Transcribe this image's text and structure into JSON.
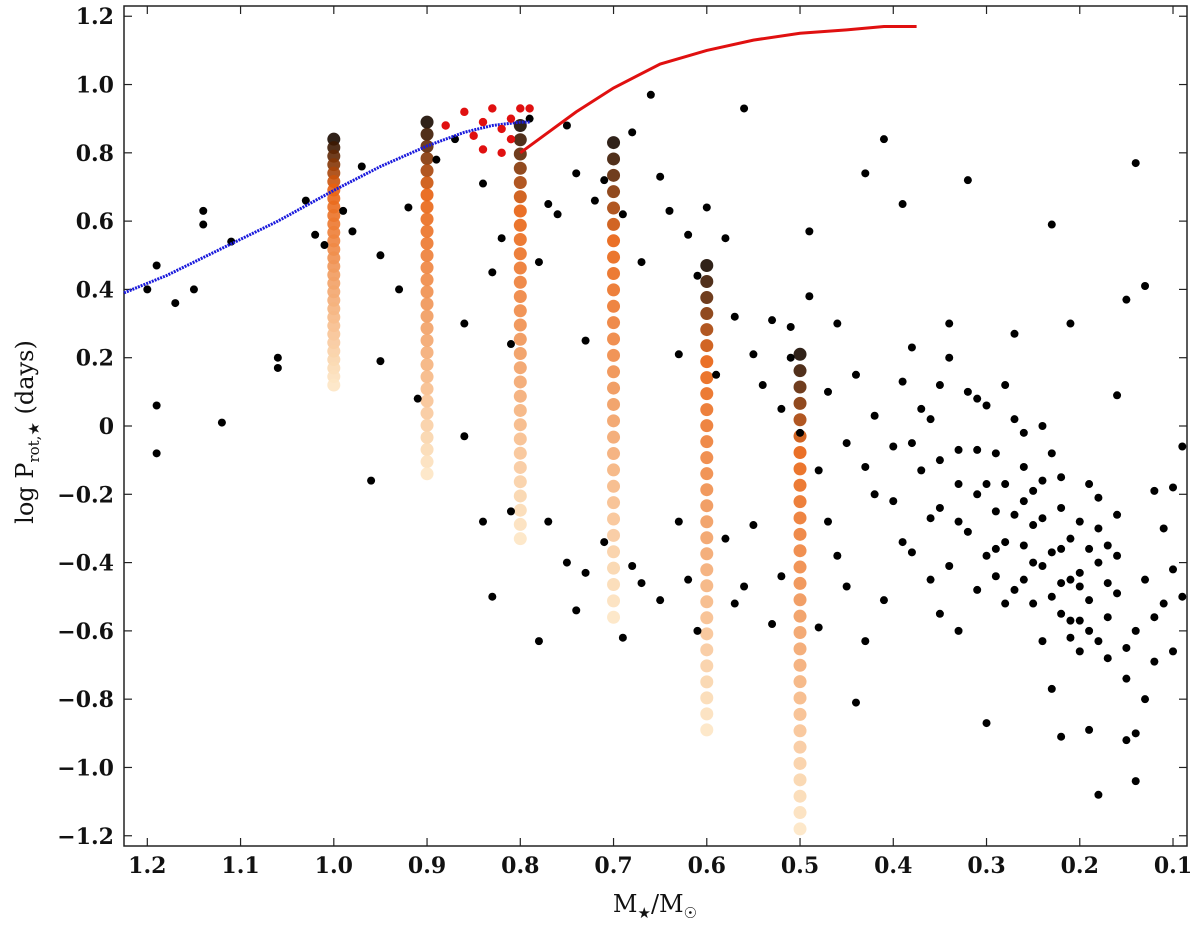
{
  "chart_data": {
    "type": "scatter",
    "title": "",
    "xlabel": "M★/M☉",
    "ylabel": "log P_rot,★ (days)",
    "xlabel_parts": {
      "main": "M",
      "sub1": "★",
      "sep": "/M",
      "sub2": "☉"
    },
    "ylabel_parts": {
      "pre": "log P",
      "sub": "rot,★",
      "post": " (days)"
    },
    "xlim": [
      1.225,
      0.085
    ],
    "ylim": [
      -1.23,
      1.23
    ],
    "x_reversed": true,
    "grid": false,
    "legend": "none",
    "x_ticks": [
      1.2,
      1.1,
      1.0,
      0.9,
      0.8,
      0.7,
      0.6,
      0.5,
      0.4,
      0.3,
      0.2,
      0.1
    ],
    "x_tick_labels": [
      "1.2",
      "1.1",
      "1.0",
      "0.9",
      "0.8",
      "0.7",
      "0.6",
      "0.5",
      "0.4",
      "0.3",
      "0.2",
      "0.1"
    ],
    "y_ticks": [
      1.2,
      1.0,
      0.8,
      0.6,
      0.4,
      0.2,
      0.0,
      -0.2,
      -0.4,
      -0.6,
      -0.8,
      -1.0,
      -1.2
    ],
    "y_tick_labels": [
      "1.2",
      "1.0",
      "0.8",
      "0.6",
      "0.4",
      "0.2",
      "0",
      "−0.2",
      "−0.4",
      "−0.6",
      "−0.8",
      "−1.0",
      "−1.2"
    ],
    "colors": {
      "observed": "#000000",
      "blue_curve": "#1a1adc",
      "red_curve": "#e01010",
      "red_points": "#e01010",
      "track_dark": "#1a0a00",
      "track_mid": "#e8600e",
      "track_light": "#fde6c4"
    },
    "series": [
      {
        "kind": "observed-scatter",
        "color": "#000000",
        "points": [
          [
            1.2,
            0.4
          ],
          [
            1.19,
            0.47
          ],
          [
            1.17,
            0.36
          ],
          [
            1.15,
            0.4
          ],
          [
            1.14,
            0.63
          ],
          [
            1.14,
            0.59
          ],
          [
            1.11,
            0.54
          ],
          [
            1.06,
            0.2
          ],
          [
            1.06,
            0.17
          ],
          [
            1.03,
            0.66
          ],
          [
            1.02,
            0.56
          ],
          [
            1.01,
            0.53
          ],
          [
            0.99,
            0.63
          ],
          [
            0.98,
            0.57
          ],
          [
            0.97,
            0.76
          ],
          [
            0.95,
            0.5
          ],
          [
            0.95,
            0.19
          ],
          [
            0.93,
            0.4
          ],
          [
            0.92,
            0.64
          ],
          [
            0.91,
            0.08
          ],
          [
            0.89,
            0.78
          ],
          [
            0.87,
            0.84
          ],
          [
            0.86,
            0.3
          ],
          [
            0.84,
            0.71
          ],
          [
            0.83,
            0.45
          ],
          [
            0.82,
            0.55
          ],
          [
            0.81,
            0.24
          ],
          [
            0.79,
            0.9
          ],
          [
            0.78,
            0.48
          ],
          [
            0.77,
            0.65
          ],
          [
            0.76,
            0.62
          ],
          [
            0.75,
            0.88
          ],
          [
            0.74,
            0.74
          ],
          [
            0.73,
            0.25
          ],
          [
            0.72,
            0.66
          ],
          [
            0.71,
            0.72
          ],
          [
            0.69,
            0.62
          ],
          [
            0.68,
            0.86
          ],
          [
            0.67,
            0.48
          ],
          [
            0.66,
            0.97
          ],
          [
            0.65,
            0.73
          ],
          [
            0.64,
            0.63
          ],
          [
            0.63,
            0.21
          ],
          [
            0.62,
            0.56
          ],
          [
            0.61,
            0.44
          ],
          [
            0.6,
            0.64
          ],
          [
            0.59,
            0.15
          ],
          [
            0.58,
            0.55
          ],
          [
            0.57,
            0.32
          ],
          [
            0.56,
            0.93
          ],
          [
            0.55,
            0.21
          ],
          [
            0.54,
            0.12
          ],
          [
            0.53,
            0.31
          ],
          [
            0.52,
            0.05
          ],
          [
            0.51,
            0.29
          ],
          [
            0.49,
            0.57
          ],
          [
            1.19,
            0.06
          ],
          [
            1.19,
            -0.08
          ],
          [
            1.12,
            0.01
          ],
          [
            0.96,
            -0.16
          ],
          [
            0.86,
            -0.03
          ],
          [
            0.84,
            -0.28
          ],
          [
            0.83,
            -0.5
          ],
          [
            0.81,
            -0.25
          ],
          [
            0.78,
            -0.63
          ],
          [
            0.77,
            -0.28
          ],
          [
            0.75,
            -0.4
          ],
          [
            0.74,
            -0.54
          ],
          [
            0.73,
            -0.43
          ],
          [
            0.71,
            -0.34
          ],
          [
            0.69,
            -0.62
          ],
          [
            0.68,
            -0.41
          ],
          [
            0.67,
            -0.46
          ],
          [
            0.65,
            -0.51
          ],
          [
            0.63,
            -0.28
          ],
          [
            0.62,
            -0.45
          ],
          [
            0.61,
            -0.6
          ],
          [
            0.58,
            -0.33
          ],
          [
            0.57,
            -0.52
          ],
          [
            0.56,
            -0.47
          ],
          [
            0.55,
            -0.29
          ],
          [
            0.53,
            -0.58
          ],
          [
            0.52,
            -0.44
          ],
          [
            0.48,
            -0.59
          ],
          [
            0.47,
            -0.28
          ],
          [
            0.46,
            -0.38
          ],
          [
            0.45,
            -0.47
          ],
          [
            0.44,
            -0.81
          ],
          [
            0.43,
            -0.63
          ],
          [
            0.42,
            -0.2
          ],
          [
            0.41,
            -0.51
          ],
          [
            0.4,
            -0.06
          ],
          [
            0.39,
            0.13
          ],
          [
            0.38,
            0.23
          ],
          [
            0.38,
            -0.37
          ],
          [
            0.37,
            -0.13
          ],
          [
            0.36,
            0.02
          ],
          [
            0.35,
            -0.24
          ],
          [
            0.34,
            0.3
          ],
          [
            0.33,
            -0.07
          ],
          [
            0.32,
            -0.31
          ],
          [
            0.31,
            0.08
          ],
          [
            0.3,
            -0.17
          ],
          [
            0.29,
            -0.44
          ],
          [
            0.28,
            0.12
          ],
          [
            0.27,
            -0.26
          ],
          [
            0.26,
            -0.12
          ],
          [
            0.25,
            -0.52
          ],
          [
            0.24,
            0.0
          ],
          [
            0.23,
            -0.37
          ],
          [
            0.22,
            -0.24
          ],
          [
            0.21,
            -0.57
          ],
          [
            0.2,
            -0.43
          ],
          [
            0.19,
            -0.17
          ],
          [
            0.18,
            -0.63
          ],
          [
            0.17,
            -0.35
          ],
          [
            0.16,
            -0.49
          ],
          [
            0.15,
            -0.74
          ],
          [
            0.14,
            -0.6
          ],
          [
            0.13,
            -0.45
          ],
          [
            0.12,
            -0.69
          ],
          [
            0.11,
            -0.52
          ],
          [
            0.1,
            -0.66
          ],
          [
            0.09,
            -0.5
          ],
          [
            0.18,
            -1.08
          ],
          [
            0.14,
            -1.04
          ],
          [
            0.14,
            -0.9
          ],
          [
            0.15,
            -0.92
          ],
          [
            0.19,
            -0.89
          ],
          [
            0.22,
            -0.91
          ],
          [
            0.23,
            -0.77
          ],
          [
            0.3,
            -0.87
          ],
          [
            0.14,
            0.77
          ],
          [
            0.13,
            0.41
          ],
          [
            0.15,
            0.37
          ],
          [
            0.32,
            0.72
          ],
          [
            0.41,
            0.84
          ],
          [
            0.43,
            0.74
          ],
          [
            0.39,
            0.65
          ],
          [
            0.23,
            0.59
          ],
          [
            0.21,
            0.3
          ],
          [
            0.34,
            0.2
          ],
          [
            0.27,
            0.27
          ],
          [
            0.16,
            0.09
          ],
          [
            0.31,
            -0.07
          ],
          [
            0.28,
            -0.17
          ],
          [
            0.26,
            -0.02
          ],
          [
            0.25,
            -0.29
          ],
          [
            0.24,
            -0.41
          ],
          [
            0.22,
            -0.46
          ],
          [
            0.21,
            -0.33
          ],
          [
            0.2,
            -0.28
          ],
          [
            0.19,
            -0.51
          ],
          [
            0.18,
            -0.4
          ],
          [
            0.17,
            -0.56
          ],
          [
            0.16,
            -0.26
          ],
          [
            0.36,
            -0.45
          ],
          [
            0.35,
            -0.55
          ],
          [
            0.33,
            -0.6
          ],
          [
            0.3,
            -0.38
          ],
          [
            0.29,
            -0.08
          ],
          [
            0.27,
            -0.48
          ],
          [
            0.26,
            -0.35
          ],
          [
            0.25,
            -0.19
          ],
          [
            0.24,
            -0.63
          ],
          [
            0.23,
            -0.08
          ],
          [
            0.22,
            -0.55
          ],
          [
            0.2,
            -0.66
          ],
          [
            0.19,
            -0.36
          ],
          [
            0.18,
            -0.21
          ],
          [
            0.17,
            -0.46
          ],
          [
            0.4,
            -0.22
          ],
          [
            0.39,
            -0.34
          ],
          [
            0.37,
            0.05
          ],
          [
            0.36,
            -0.27
          ],
          [
            0.35,
            0.12
          ],
          [
            0.33,
            -0.17
          ],
          [
            0.32,
            0.1
          ],
          [
            0.31,
            -0.2
          ],
          [
            0.3,
            0.06
          ],
          [
            0.29,
            -0.25
          ],
          [
            0.28,
            -0.34
          ],
          [
            0.27,
            0.02
          ],
          [
            0.26,
            -0.22
          ],
          [
            0.25,
            -0.4
          ],
          [
            0.24,
            -0.16
          ],
          [
            0.23,
            -0.5
          ],
          [
            0.22,
            -0.15
          ],
          [
            0.21,
            -0.45
          ],
          [
            0.2,
            -0.57
          ],
          [
            0.19,
            -0.6
          ],
          [
            0.18,
            -0.3
          ],
          [
            0.17,
            -0.68
          ],
          [
            0.16,
            -0.38
          ],
          [
            0.42,
            0.03
          ],
          [
            0.43,
            -0.12
          ],
          [
            0.44,
            0.15
          ],
          [
            0.45,
            -0.05
          ],
          [
            0.46,
            0.3
          ],
          [
            0.47,
            0.1
          ],
          [
            0.48,
            -0.13
          ],
          [
            0.49,
            0.38
          ],
          [
            0.5,
            -0.02
          ],
          [
            0.51,
            0.2
          ],
          [
            0.12,
            -0.19
          ],
          [
            0.11,
            -0.3
          ],
          [
            0.1,
            -0.42
          ],
          [
            0.09,
            -0.06
          ],
          [
            0.1,
            -0.18
          ],
          [
            0.12,
            -0.56
          ],
          [
            0.13,
            -0.8
          ],
          [
            0.15,
            -0.65
          ],
          [
            0.34,
            -0.41
          ],
          [
            0.38,
            -0.05
          ],
          [
            0.28,
            -0.52
          ],
          [
            0.21,
            -0.62
          ],
          [
            0.2,
            -0.47
          ],
          [
            0.22,
            -0.36
          ],
          [
            0.24,
            -0.27
          ],
          [
            0.26,
            -0.45
          ],
          [
            0.29,
            -0.36
          ],
          [
            0.31,
            -0.48
          ],
          [
            0.33,
            -0.28
          ],
          [
            0.35,
            -0.1
          ]
        ]
      },
      {
        "kind": "blue-curve",
        "color": "#1a1adc",
        "points": [
          [
            1.225,
            0.39
          ],
          [
            1.18,
            0.44
          ],
          [
            1.12,
            0.52
          ],
          [
            1.06,
            0.6
          ],
          [
            1.0,
            0.69
          ],
          [
            0.95,
            0.76
          ],
          [
            0.9,
            0.82
          ],
          [
            0.86,
            0.86
          ],
          [
            0.83,
            0.88
          ],
          [
            0.8,
            0.89
          ],
          [
            0.79,
            0.89
          ]
        ]
      },
      {
        "kind": "red-curve",
        "color": "#e01010",
        "points": [
          [
            0.8,
            0.8
          ],
          [
            0.77,
            0.86
          ],
          [
            0.74,
            0.92
          ],
          [
            0.7,
            0.99
          ],
          [
            0.65,
            1.06
          ],
          [
            0.6,
            1.1
          ],
          [
            0.55,
            1.13
          ],
          [
            0.5,
            1.15
          ],
          [
            0.45,
            1.16
          ],
          [
            0.41,
            1.17
          ],
          [
            0.375,
            1.17
          ]
        ]
      },
      {
        "kind": "red-points",
        "color": "#e01010",
        "points": [
          [
            0.88,
            0.88
          ],
          [
            0.86,
            0.92
          ],
          [
            0.85,
            0.85
          ],
          [
            0.84,
            0.89
          ],
          [
            0.83,
            0.93
          ],
          [
            0.82,
            0.87
          ],
          [
            0.81,
            0.9
          ],
          [
            0.8,
            0.93
          ],
          [
            0.84,
            0.81
          ],
          [
            0.82,
            0.8
          ],
          [
            0.79,
            0.93
          ],
          [
            0.81,
            0.84
          ]
        ]
      },
      {
        "kind": "model-tracks",
        "tracks": [
          {
            "x": 1.0,
            "top": 0.84,
            "bottom": 0.12
          },
          {
            "x": 0.9,
            "top": 0.89,
            "bottom": -0.14
          },
          {
            "x": 0.8,
            "top": 0.88,
            "bottom": -0.33
          },
          {
            "x": 0.7,
            "top": 0.83,
            "bottom": -0.56
          },
          {
            "x": 0.6,
            "top": 0.47,
            "bottom": -0.89
          },
          {
            "x": 0.5,
            "top": 0.21,
            "bottom": -1.18
          }
        ]
      }
    ]
  }
}
